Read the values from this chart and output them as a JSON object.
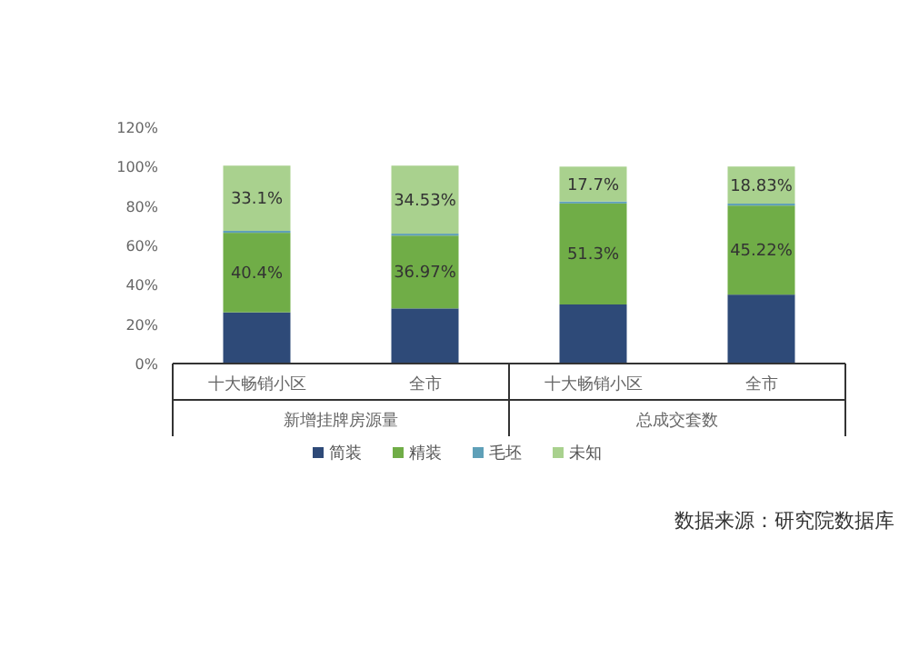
{
  "chart_data": {
    "type": "bar",
    "stacked": true,
    "categories": [
      "十大畅销小区",
      "全市",
      "十大畅销小区",
      "全市"
    ],
    "series": [
      {
        "name": "简装",
        "color": "#2e4a78",
        "values": [
          26,
          28,
          30,
          35
        ],
        "value_labels": [
          null,
          null,
          null,
          null
        ]
      },
      {
        "name": "精装",
        "color": "#70ad47",
        "values": [
          40.4,
          36.97,
          51.3,
          45.22
        ],
        "value_labels": [
          "40.4%",
          "36.97%",
          "51.3%",
          "45.22%"
        ]
      },
      {
        "name": "毛坯",
        "color": "#5fa0b8",
        "values": [
          1,
          1,
          1,
          1
        ],
        "value_labels": [
          null,
          null,
          null,
          null
        ]
      },
      {
        "name": "未知",
        "color": "#a9d18e",
        "values": [
          33.1,
          34.53,
          17.7,
          18.83
        ],
        "value_labels": [
          "33.1%",
          "34.53%",
          "17.7%",
          "18.83%"
        ]
      }
    ],
    "ylim": [
      0,
      120
    ],
    "yticks": [
      {
        "value": 0,
        "label": "0%"
      },
      {
        "value": 20,
        "label": "20%"
      },
      {
        "value": 40,
        "label": "40%"
      },
      {
        "value": 60,
        "label": "60%"
      },
      {
        "value": 80,
        "label": "80%"
      },
      {
        "value": 100,
        "label": "100%"
      },
      {
        "value": 120,
        "label": "120%"
      }
    ],
    "legend": "bottom",
    "annotations": [
      "新增挂牌房源量",
      "总成交套数",
      "数据来源：研究院数据库"
    ]
  }
}
